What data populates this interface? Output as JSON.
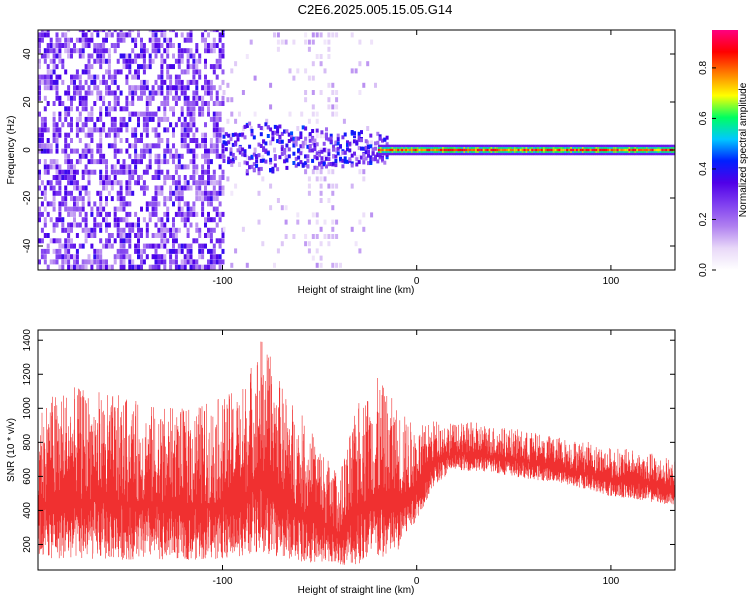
{
  "title": "C2E6.2025.005.15.05.G14",
  "colors": {
    "snr_line": "#f03030",
    "colormap": [
      "#ffffff",
      "#e8d8f8",
      "#b080f0",
      "#8040f0",
      "#5000e8",
      "#0020ff",
      "#00c8ff",
      "#00ff60",
      "#ffff00",
      "#ff8000",
      "#ff0000",
      "#ff0080"
    ]
  },
  "chart_data": [
    {
      "type": "heatmap",
      "name": "spectrogram",
      "xlabel": "Height of straight line (km)",
      "ylabel": "Frequency (Hz)",
      "xlim": [
        -195,
        133
      ],
      "ylim": [
        -50,
        50
      ],
      "xticks": [
        -100,
        0,
        100
      ],
      "xtick_labels": [
        "-100",
        "0",
        "100"
      ],
      "yticks": [
        -40,
        -20,
        0,
        20,
        40
      ],
      "ytick_labels": [
        "-40",
        "-20",
        "0",
        "20",
        "40"
      ],
      "colorbar": {
        "label": "Normalized spectral amplitude",
        "range": [
          0,
          0.95
        ],
        "ticks": [
          0.0,
          0.2,
          0.4,
          0.6,
          0.8
        ],
        "tick_labels": [
          "0.0",
          "0.2",
          "0.4",
          "0.6",
          "0.8"
        ]
      },
      "regions": [
        {
          "x_range": [
            -195,
            -100
          ],
          "freq_range": [
            -50,
            50
          ],
          "amplitude": 0.05,
          "pattern": "noise"
        },
        {
          "x_range": [
            -100,
            -20
          ],
          "freq_range": [
            -8,
            8
          ],
          "amplitude": 0.25,
          "pattern": "scattered"
        },
        {
          "x_range": [
            -20,
            133
          ],
          "freq_range": [
            -2,
            2
          ],
          "amplitude": 0.9,
          "pattern": "narrow line at 0 Hz"
        }
      ]
    },
    {
      "type": "line",
      "name": "snr",
      "xlabel": "Height of straight line (km)",
      "ylabel": "SNR (10 * v/v)",
      "xlim": [
        -195,
        133
      ],
      "ylim": [
        50,
        1460
      ],
      "xticks": [
        -100,
        0,
        100
      ],
      "xtick_labels": [
        "-100",
        "0",
        "100"
      ],
      "yticks": [
        200,
        400,
        600,
        800,
        1000,
        1200,
        1400
      ],
      "ytick_labels": [
        "200",
        "400",
        "600",
        "800",
        "1000",
        "1200",
        "1400"
      ],
      "envelope": {
        "x": [
          -195,
          -180,
          -160,
          -140,
          -120,
          -100,
          -90,
          -80,
          -70,
          -60,
          -50,
          -40,
          -30,
          -20,
          -10,
          0,
          10,
          20,
          30,
          40,
          50,
          60,
          70,
          80,
          90,
          100,
          110,
          120,
          133
        ],
        "low": [
          120,
          110,
          110,
          110,
          110,
          110,
          130,
          150,
          120,
          100,
          90,
          80,
          80,
          100,
          150,
          350,
          560,
          640,
          630,
          620,
          600,
          580,
          570,
          540,
          520,
          480,
          470,
          450,
          430
        ],
        "high": [
          1050,
          1130,
          1100,
          1030,
          1000,
          1070,
          1130,
          1440,
          1150,
          980,
          800,
          600,
          1050,
          1180,
          1020,
          890,
          940,
          910,
          920,
          900,
          880,
          860,
          840,
          820,
          800,
          770,
          760,
          740,
          700
        ]
      }
    }
  ]
}
